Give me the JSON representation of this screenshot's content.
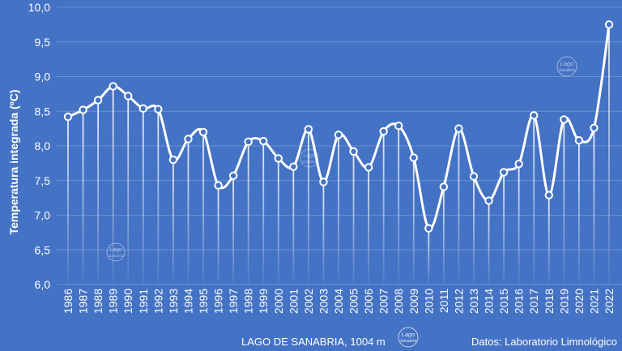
{
  "chart_data": {
    "type": "line",
    "ylabel": "Temperatura integrada (ºC)",
    "ylim": [
      6.0,
      10.0
    ],
    "yticks": [
      "6,0",
      "6,5",
      "7,0",
      "7,5",
      "8,0",
      "8,5",
      "9,0",
      "9,5",
      "10,0"
    ],
    "x": [
      "1986",
      "1987",
      "1988",
      "1989",
      "1990",
      "1991",
      "1992",
      "1993",
      "1994",
      "1995",
      "1996",
      "1997",
      "1998",
      "1999",
      "2000",
      "2001",
      "2002",
      "2003",
      "2004",
      "2005",
      "2006",
      "2007",
      "2008",
      "2009",
      "2010",
      "2011",
      "2012",
      "2013",
      "2014",
      "2015",
      "2016",
      "2017",
      "2018",
      "2019",
      "2020",
      "2021",
      "2022"
    ],
    "values": [
      8.42,
      8.52,
      8.66,
      8.86,
      8.72,
      8.54,
      8.53,
      7.8,
      8.1,
      8.2,
      7.43,
      7.57,
      8.06,
      8.07,
      7.82,
      7.7,
      8.24,
      7.48,
      8.16,
      7.92,
      7.69,
      8.21,
      8.29,
      7.83,
      6.81,
      7.41,
      8.25,
      7.56,
      7.21,
      7.62,
      7.74,
      8.44,
      7.29,
      8.38,
      8.08,
      8.26,
      9.75
    ],
    "grid": true,
    "legend": "none"
  },
  "footer": {
    "left": "LAGO DE SANABRIA, 1004 m",
    "right": "Datos: Laboratorio Limnológico"
  },
  "logo": {
    "line1": "Lago",
    "line2": "Sanabria"
  },
  "colors": {
    "background": "#4472C4",
    "line": "#FFFFFF",
    "grid": "#6C8FD2"
  }
}
